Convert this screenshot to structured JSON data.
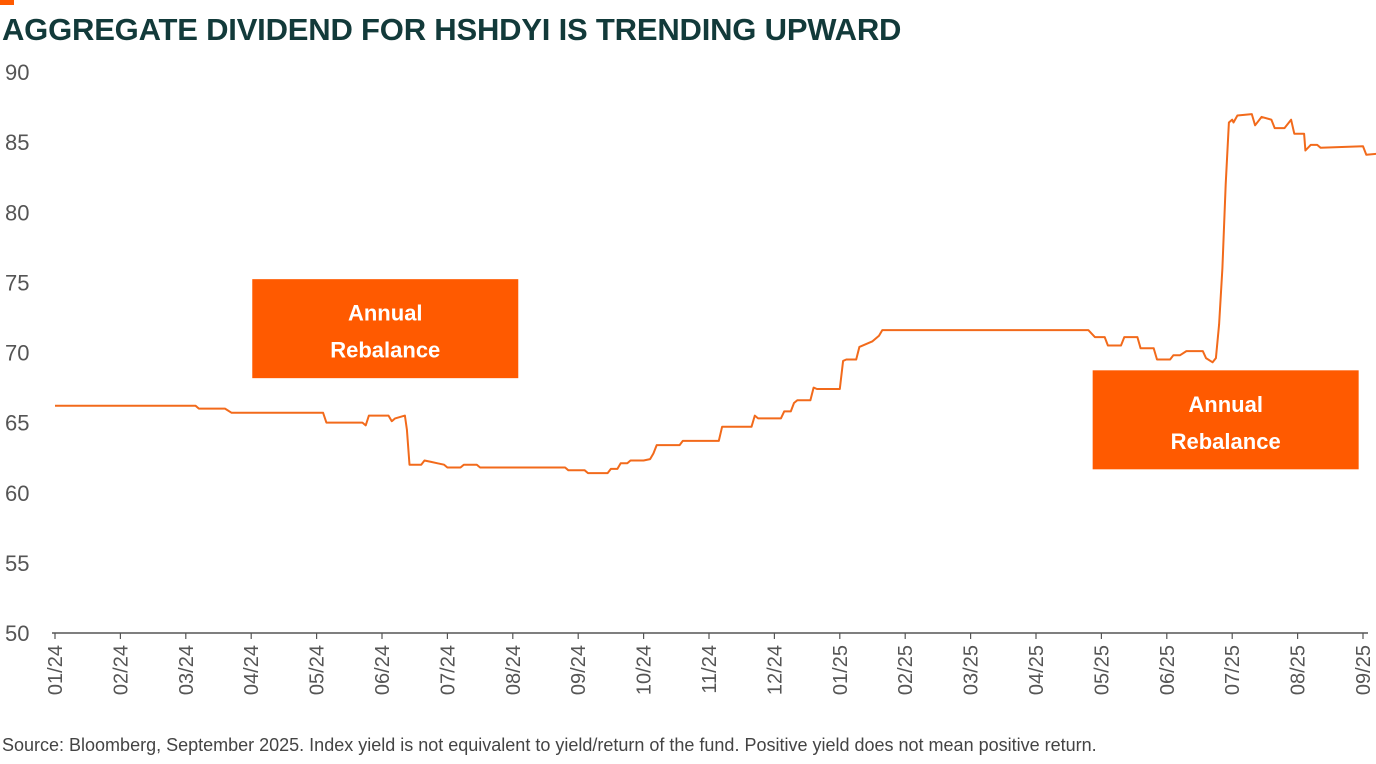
{
  "title": "AGGREGATE DIVIDEND FOR HSHDYI IS TRENDING UPWARD",
  "source": "Source: Bloomberg, September 2025. Index yield is not equivalent to yield/return of the fund. Positive yield does not mean positive return.",
  "colors": {
    "accent": "#ff5a00",
    "line": "#f26a1b",
    "title": "#123a3a",
    "axis": "#555555",
    "callout_text": "#ffffff"
  },
  "chart_data": {
    "type": "line",
    "ylim": [
      50,
      90
    ],
    "yticks": [
      "50",
      "55",
      "60",
      "65",
      "70",
      "75",
      "80",
      "85",
      "90"
    ],
    "xticks": [
      "01/24",
      "02/24",
      "03/24",
      "04/24",
      "05/24",
      "06/24",
      "07/24",
      "08/24",
      "09/24",
      "10/24",
      "11/24",
      "12/24",
      "01/25",
      "02/25",
      "03/25",
      "04/25",
      "05/25",
      "06/25",
      "07/25",
      "08/25",
      "09/25"
    ],
    "xlim": [
      0,
      20.75
    ],
    "grid": false,
    "series": [
      {
        "values": [
          [
            0.0,
            66.2
          ],
          [
            2.15,
            66.2
          ],
          [
            2.2,
            66.0
          ],
          [
            2.6,
            66.0
          ],
          [
            2.7,
            65.7
          ],
          [
            4.0,
            65.7
          ],
          [
            4.1,
            65.7
          ],
          [
            4.15,
            65.0
          ],
          [
            4.7,
            65.0
          ],
          [
            4.75,
            64.8
          ],
          [
            4.8,
            65.5
          ],
          [
            5.0,
            65.5
          ],
          [
            5.1,
            65.5
          ],
          [
            5.15,
            65.1
          ],
          [
            5.2,
            65.3
          ],
          [
            5.35,
            65.5
          ],
          [
            5.38,
            64.5
          ],
          [
            5.42,
            62.0
          ],
          [
            5.6,
            62.0
          ],
          [
            5.65,
            62.3
          ],
          [
            5.75,
            62.2
          ],
          [
            5.85,
            62.1
          ],
          [
            5.95,
            62.0
          ],
          [
            6.0,
            61.8
          ],
          [
            6.2,
            61.8
          ],
          [
            6.25,
            62.0
          ],
          [
            6.45,
            62.0
          ],
          [
            6.5,
            61.8
          ],
          [
            7.8,
            61.8
          ],
          [
            7.85,
            61.6
          ],
          [
            8.1,
            61.6
          ],
          [
            8.15,
            61.4
          ],
          [
            8.45,
            61.4
          ],
          [
            8.5,
            61.7
          ],
          [
            8.6,
            61.7
          ],
          [
            8.65,
            62.1
          ],
          [
            8.75,
            62.1
          ],
          [
            8.8,
            62.3
          ],
          [
            9.0,
            62.3
          ],
          [
            9.1,
            62.4
          ],
          [
            9.15,
            62.8
          ],
          [
            9.2,
            63.4
          ],
          [
            9.55,
            63.4
          ],
          [
            9.6,
            63.7
          ],
          [
            10.15,
            63.7
          ],
          [
            10.2,
            64.7
          ],
          [
            10.65,
            64.7
          ],
          [
            10.7,
            65.5
          ],
          [
            10.75,
            65.3
          ],
          [
            11.1,
            65.3
          ],
          [
            11.15,
            65.8
          ],
          [
            11.25,
            65.8
          ],
          [
            11.3,
            66.4
          ],
          [
            11.35,
            66.6
          ],
          [
            11.55,
            66.6
          ],
          [
            11.6,
            67.5
          ],
          [
            11.65,
            67.4
          ],
          [
            12.0,
            67.4
          ],
          [
            12.05,
            69.4
          ],
          [
            12.1,
            69.5
          ],
          [
            12.25,
            69.5
          ],
          [
            12.3,
            70.4
          ],
          [
            12.5,
            70.8
          ],
          [
            12.6,
            71.2
          ],
          [
            12.65,
            71.6
          ],
          [
            15.8,
            71.6
          ],
          [
            15.9,
            71.1
          ],
          [
            16.05,
            71.1
          ],
          [
            16.1,
            70.5
          ],
          [
            16.3,
            70.5
          ],
          [
            16.35,
            71.1
          ],
          [
            16.55,
            71.1
          ],
          [
            16.6,
            70.3
          ],
          [
            16.8,
            70.3
          ],
          [
            16.85,
            69.5
          ],
          [
            17.05,
            69.5
          ],
          [
            17.1,
            69.8
          ],
          [
            17.2,
            69.8
          ],
          [
            17.3,
            70.1
          ],
          [
            17.55,
            70.1
          ],
          [
            17.6,
            69.6
          ],
          [
            17.7,
            69.3
          ],
          [
            17.75,
            69.6
          ],
          [
            17.8,
            72.0
          ],
          [
            17.85,
            76.0
          ],
          [
            17.9,
            82.0
          ],
          [
            17.95,
            86.4
          ],
          [
            18.0,
            86.6
          ],
          [
            18.02,
            86.4
          ],
          [
            18.08,
            86.9
          ],
          [
            18.3,
            87.0
          ],
          [
            18.35,
            86.2
          ],
          [
            18.45,
            86.8
          ],
          [
            18.6,
            86.6
          ],
          [
            18.65,
            86.0
          ],
          [
            18.8,
            86.0
          ],
          [
            18.9,
            86.6
          ],
          [
            18.95,
            85.6
          ],
          [
            19.1,
            85.6
          ],
          [
            19.12,
            84.4
          ],
          [
            19.2,
            84.8
          ],
          [
            19.3,
            84.8
          ],
          [
            19.35,
            84.6
          ],
          [
            20.0,
            84.7
          ],
          [
            20.05,
            84.1
          ],
          [
            20.3,
            84.2
          ],
          [
            20.35,
            84.6
          ],
          [
            20.45,
            84.6
          ],
          [
            20.5,
            85.2
          ],
          [
            20.65,
            85.2
          ],
          [
            20.7,
            84.6
          ],
          [
            20.8,
            84.6
          ],
          [
            20.85,
            84.2
          ]
        ]
      }
    ],
    "annotations": [
      {
        "lines": [
          "Annual",
          "Rebalance"
        ],
        "x": 5.05,
        "y": 71.7
      },
      {
        "lines": [
          "Annual",
          "Rebalance"
        ],
        "x": 17.9,
        "y": 65.2
      }
    ]
  }
}
